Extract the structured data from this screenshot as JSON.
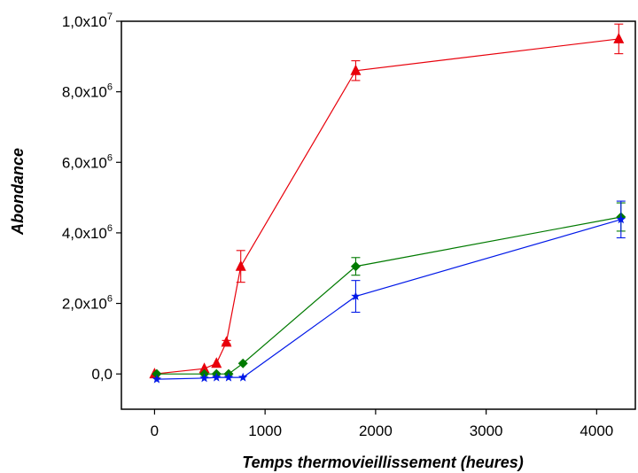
{
  "chart_data": {
    "type": "line",
    "xlabel": "Temps thermovieillissement (heures)",
    "ylabel": "Abondance",
    "xlim": [
      -300,
      4350
    ],
    "ylim": [
      -1000000,
      10000000
    ],
    "x_ticks": [
      {
        "value": 0,
        "label": "0"
      },
      {
        "value": 1000,
        "label": "1000"
      },
      {
        "value": 2000,
        "label": "2000"
      },
      {
        "value": 3000,
        "label": "3000"
      },
      {
        "value": 4000,
        "label": "4000"
      }
    ],
    "y_ticks": [
      {
        "value": 0,
        "mant": "0,0",
        "exp": ""
      },
      {
        "value": 2000000,
        "mant": "2,0x10",
        "exp": "6"
      },
      {
        "value": 4000000,
        "mant": "4,0x10",
        "exp": "6"
      },
      {
        "value": 6000000,
        "mant": "6,0x10",
        "exp": "6"
      },
      {
        "value": 8000000,
        "mant": "8,0x10",
        "exp": "6"
      },
      {
        "value": 10000000,
        "mant": "1,0x10",
        "exp": "7"
      }
    ],
    "series": [
      {
        "color": "#e8000b",
        "marker": "triangle",
        "points": [
          {
            "x": 0,
            "y": 0,
            "err": 0
          },
          {
            "x": 450,
            "y": 150000,
            "err": 0
          },
          {
            "x": 560,
            "y": 300000,
            "err": 0
          },
          {
            "x": 650,
            "y": 900000,
            "err": 50000
          },
          {
            "x": 780,
            "y": 3050000,
            "err": 450000
          },
          {
            "x": 1820,
            "y": 8600000,
            "err": 280000
          },
          {
            "x": 4200,
            "y": 9500000,
            "err": 420000
          }
        ]
      },
      {
        "color": "#007a00",
        "marker": "diamond",
        "points": [
          {
            "x": 20,
            "y": 0,
            "err": 0
          },
          {
            "x": 450,
            "y": 0,
            "err": 0
          },
          {
            "x": 560,
            "y": 0,
            "err": 0
          },
          {
            "x": 670,
            "y": 0,
            "err": 0
          },
          {
            "x": 800,
            "y": 300000,
            "err": 0
          },
          {
            "x": 1820,
            "y": 3050000,
            "err": 250000
          },
          {
            "x": 4220,
            "y": 4450000,
            "err": 400000
          }
        ]
      },
      {
        "color": "#0018e8",
        "marker": "star",
        "points": [
          {
            "x": 20,
            "y": -150000,
            "err": 0
          },
          {
            "x": 450,
            "y": -120000,
            "err": 0
          },
          {
            "x": 560,
            "y": -100000,
            "err": 0
          },
          {
            "x": 670,
            "y": -100000,
            "err": 0
          },
          {
            "x": 800,
            "y": -100000,
            "err": 0
          },
          {
            "x": 1820,
            "y": 2200000,
            "err": 450000
          },
          {
            "x": 4220,
            "y": 4380000,
            "err": 520000
          }
        ]
      }
    ]
  }
}
